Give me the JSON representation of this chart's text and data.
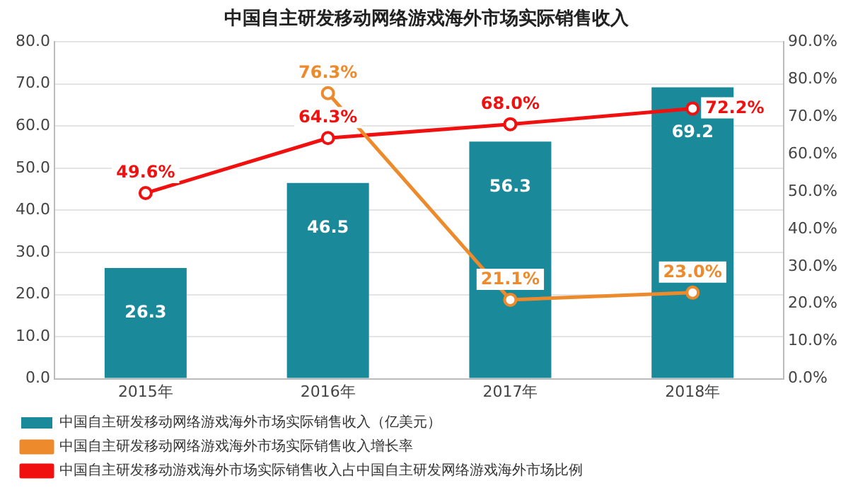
{
  "chart_data": {
    "type": "bar",
    "title": "中国自主研发移动网络游戏海外市场实际销售收入",
    "categories": [
      "2015年",
      "2016年",
      "2017年",
      "2018年"
    ],
    "series": [
      {
        "name": "中国自主研发移动网络游戏海外市场实际销售收入（亿美元）",
        "color": "#1a8a9b",
        "values": [
          26.3,
          46.5,
          56.3,
          69.2
        ],
        "value_labels": [
          "26.3",
          "46.5",
          "56.3",
          "69.2"
        ]
      },
      {
        "name": "中国自主研发移动网络游戏海外市场实际销售收入增长率",
        "type": "line",
        "axis": "y2",
        "color": "#ec8a2c",
        "values": [
          null,
          76.3,
          21.1,
          23.0
        ],
        "value_labels": [
          null,
          "76.3%",
          "21.1%",
          "23.0%"
        ]
      },
      {
        "name": "中国自主研发移动游戏海外市场实际销售收入占中国自主研发网络游戏海外市场比例",
        "type": "line",
        "axis": "y2",
        "color": "#f01010",
        "values": [
          49.6,
          64.3,
          68.0,
          72.2
        ],
        "value_labels": [
          "49.6%",
          "64.3%",
          "68.0%",
          "72.2%"
        ]
      }
    ],
    "ylim": [
      0,
      80
    ],
    "yticks": [
      {
        "value": 0,
        "label": "0.0"
      },
      {
        "value": 10,
        "label": "10.0"
      },
      {
        "value": 20,
        "label": "20.0"
      },
      {
        "value": 30,
        "label": "30.0"
      },
      {
        "value": 40,
        "label": "40.0"
      },
      {
        "value": 50,
        "label": "50.0"
      },
      {
        "value": 60,
        "label": "60.0"
      },
      {
        "value": 70,
        "label": "70.0"
      },
      {
        "value": 80,
        "label": "80.0"
      }
    ],
    "y2lim": [
      0,
      90
    ],
    "y2ticks": [
      {
        "value": 0,
        "label": "0.0%"
      },
      {
        "value": 10,
        "label": "10.0%"
      },
      {
        "value": 20,
        "label": "20.0%"
      },
      {
        "value": 30,
        "label": "30.0%"
      },
      {
        "value": 40,
        "label": "40.0%"
      },
      {
        "value": 50,
        "label": "50.0%"
      },
      {
        "value": 60,
        "label": "60.0%"
      },
      {
        "value": 70,
        "label": "70.0%"
      },
      {
        "value": 80,
        "label": "80.0%"
      },
      {
        "value": 90,
        "label": "90.0%"
      }
    ],
    "grid": "y",
    "legend": "bottom",
    "marker": "circle",
    "line_style": "solid"
  }
}
